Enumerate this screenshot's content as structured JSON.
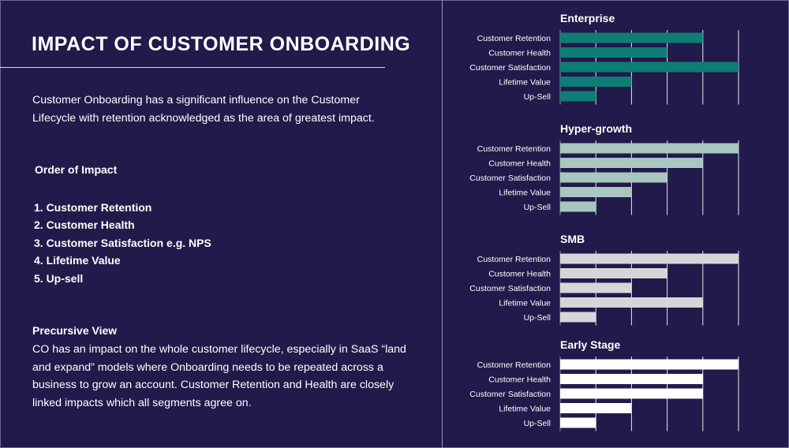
{
  "title": "IMPACT OF CUSTOMER ONBOARDING",
  "intro": "Customer Onboarding has a significant influence on the Customer Lifecycle with retention acknowledged as the area of greatest impact.",
  "order": {
    "heading": "Order of Impact",
    "items": [
      "1. Customer Retention",
      "2. Customer Health",
      "3. Customer Satisfaction e.g. NPS",
      "4. Lifetime Value",
      "5. Up-sell"
    ]
  },
  "precursive": {
    "heading": "Precursive View",
    "body": "CO has an impact on the whole customer lifecycle, especially in SaaS “land and expand” models where Onboarding needs to be repeated across a business to grow an account. Customer Retention and Health are closely linked impacts which all segments agree on."
  },
  "chart_data": [
    {
      "type": "bar",
      "orientation": "horizontal",
      "title": "Enterprise",
      "color": "#0e7d74",
      "categories": [
        "Customer Retention",
        "Customer Health",
        "Customer Satisfaction",
        "Lifetime Value",
        "Up-Sell"
      ],
      "values": [
        4,
        3,
        5,
        2,
        1
      ],
      "xlim": [
        0,
        5
      ],
      "grid": true
    },
    {
      "type": "bar",
      "orientation": "horizontal",
      "title": "Hyper-growth",
      "color": "#a9c6c1",
      "categories": [
        "Customer Retention",
        "Customer Health",
        "Customer Satisfaction",
        "Lifetime Value",
        "Up-Sell"
      ],
      "values": [
        5,
        4,
        3,
        2,
        1
      ],
      "xlim": [
        0,
        5
      ],
      "grid": true
    },
    {
      "type": "bar",
      "orientation": "horizontal",
      "title": "SMB",
      "color": "#d6d6d8",
      "categories": [
        "Customer Retention",
        "Customer Health",
        "Customer Satisfaction",
        "Lifetime Value",
        "Up-Sell"
      ],
      "values": [
        5,
        3,
        2,
        4,
        1
      ],
      "xlim": [
        0,
        5
      ],
      "grid": true
    },
    {
      "type": "bar",
      "orientation": "horizontal",
      "title": "Early Stage",
      "color": "#ffffff",
      "categories": [
        "Customer Retention",
        "Customer Health",
        "Customer Satisfaction",
        "Lifetime Value",
        "Up-Sell"
      ],
      "values": [
        5,
        4,
        4,
        2,
        1
      ],
      "xlim": [
        0,
        5
      ],
      "grid": true
    }
  ]
}
